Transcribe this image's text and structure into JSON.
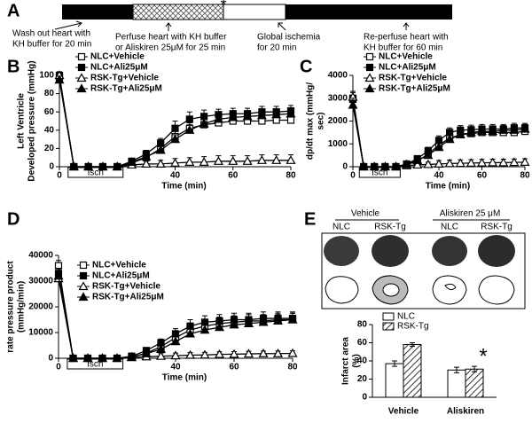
{
  "timeline": {
    "label": "A",
    "star": "*",
    "steps": [
      {
        "lines": [
          "Wash out heart with",
          "KH buffer for 20 min"
        ]
      },
      {
        "lines": [
          "Perfuse heart with KH buffer",
          "or Aliskiren 25μM  for 25 min"
        ]
      },
      {
        "lines": [
          "Global ischemia",
          "for 20 min"
        ]
      },
      {
        "lines": [
          "Re-perfuse heart with",
          "KH buffer for 60 min"
        ]
      }
    ]
  },
  "images": {
    "label": "E",
    "groups": [
      "Vehicle",
      "Aliskiren 25 μM"
    ],
    "columns": [
      "NLC",
      "RSK-Tg",
      "NLC",
      "RSK-Tg"
    ]
  },
  "chart_data": [
    {
      "type": "line",
      "panel": "B",
      "ylabel": [
        "Left Ventricle",
        "Developed pressure (mmHg)"
      ],
      "xlabel": "Time (min)",
      "xlim": [
        0,
        80
      ],
      "xticks": [
        0,
        20,
        40,
        60,
        80
      ],
      "ylim": [
        0,
        100
      ],
      "yticks": [
        0,
        20,
        40,
        60,
        80,
        100
      ],
      "isch": {
        "label": "Isch",
        "start": 3,
        "end": 22
      },
      "x": [
        0,
        5,
        10,
        15,
        20,
        25,
        30,
        35,
        40,
        45,
        50,
        55,
        60,
        65,
        70,
        75,
        80
      ],
      "series": [
        {
          "name": "NLC+Vehicle",
          "color": "#000000",
          "marker": "square-open",
          "values": [
            98,
            0,
            0,
            0,
            0,
            4,
            10,
            20,
            33,
            42,
            46,
            48,
            50,
            50,
            50,
            51,
            51
          ],
          "errors": [
            4,
            0,
            0,
            0,
            0,
            2,
            3,
            4,
            6,
            6,
            6,
            6,
            6,
            6,
            6,
            6,
            6
          ]
        },
        {
          "name": "NLC+Ali25μM",
          "color": "#000000",
          "marker": "square-filled",
          "values": [
            100,
            0,
            0,
            0,
            0,
            6,
            14,
            26,
            42,
            52,
            55,
            57,
            58,
            58,
            60,
            60,
            61
          ],
          "errors": [
            4,
            0,
            0,
            0,
            0,
            2,
            4,
            5,
            8,
            8,
            7,
            6,
            6,
            6,
            6,
            6,
            6
          ]
        },
        {
          "name": "RSK-Tg+Vehicle",
          "color": "#000000",
          "marker": "triangle-open",
          "values": [
            100,
            0,
            0,
            0,
            0,
            2,
            3,
            3,
            4,
            5,
            5,
            6,
            6,
            6,
            7,
            7,
            7
          ],
          "errors": [
            3,
            0,
            0,
            0,
            0,
            2,
            3,
            4,
            5,
            5,
            6,
            6,
            6,
            6,
            6,
            6,
            6
          ]
        },
        {
          "name": "RSK-Tg+Ali25μM",
          "color": "#000000",
          "marker": "triangle-filled",
          "values": [
            95,
            0,
            0,
            0,
            0,
            5,
            11,
            18,
            30,
            40,
            47,
            52,
            54,
            55,
            56,
            57,
            58
          ],
          "errors": [
            4,
            0,
            0,
            0,
            0,
            2,
            3,
            4,
            5,
            6,
            6,
            6,
            6,
            6,
            6,
            6,
            6
          ]
        }
      ]
    },
    {
      "type": "line",
      "panel": "C",
      "ylabel": [
        "dp/dt max  (mmHg/",
        "sec)"
      ],
      "xlabel": "Time (min)",
      "xlim": [
        0,
        80
      ],
      "xticks": [
        0,
        20,
        40,
        60,
        80
      ],
      "ylim": [
        0,
        4000
      ],
      "yticks": [
        0,
        1000,
        2000,
        3000,
        4000
      ],
      "isch": {
        "label": "Isch",
        "start": 3,
        "end": 22
      },
      "x": [
        0,
        5,
        10,
        15,
        20,
        25,
        30,
        35,
        40,
        45,
        50,
        55,
        60,
        65,
        70,
        75,
        80
      ],
      "series": [
        {
          "name": "NLC+Vehicle",
          "color": "#000000",
          "marker": "square-open",
          "values": [
            3000,
            0,
            0,
            0,
            0,
            80,
            250,
            550,
            950,
            1250,
            1400,
            1450,
            1500,
            1500,
            1500,
            1500,
            1550
          ],
          "errors": [
            300,
            0,
            0,
            0,
            0,
            60,
            100,
            150,
            200,
            200,
            200,
            200,
            200,
            200,
            200,
            200,
            200
          ]
        },
        {
          "name": "NLC+Ali25μM",
          "color": "#000000",
          "marker": "square-filled",
          "values": [
            2950,
            0,
            0,
            0,
            0,
            120,
            350,
            700,
            1150,
            1500,
            1600,
            1620,
            1650,
            1650,
            1650,
            1700,
            1700
          ],
          "errors": [
            300,
            0,
            0,
            0,
            0,
            60,
            100,
            150,
            200,
            200,
            200,
            200,
            200,
            200,
            200,
            200,
            200
          ]
        },
        {
          "name": "RSK-Tg+Vehicle",
          "color": "#000000",
          "marker": "triangle-open",
          "values": [
            3050,
            0,
            0,
            0,
            0,
            50,
            80,
            100,
            120,
            140,
            150,
            160,
            170,
            180,
            180,
            190,
            200
          ],
          "errors": [
            250,
            0,
            0,
            0,
            0,
            50,
            100,
            100,
            150,
            150,
            150,
            150,
            150,
            150,
            150,
            150,
            150
          ]
        },
        {
          "name": "RSK-Tg+Ali25μM",
          "color": "#000000",
          "marker": "triangle-filled",
          "values": [
            2700,
            0,
            0,
            0,
            0,
            100,
            280,
            500,
            850,
            1200,
            1400,
            1500,
            1550,
            1550,
            1600,
            1600,
            1650
          ],
          "errors": [
            300,
            0,
            0,
            0,
            0,
            60,
            100,
            150,
            200,
            200,
            200,
            200,
            200,
            200,
            200,
            200,
            200
          ]
        }
      ]
    },
    {
      "type": "line",
      "panel": "D",
      "ylabel": [
        "rate pressure product",
        "(mmHg/min)"
      ],
      "xlabel": "Time (min)",
      "xlim": [
        0,
        80
      ],
      "xticks": [
        0,
        20,
        40,
        60,
        80
      ],
      "ylim": [
        0,
        40000
      ],
      "yticks": [
        0,
        10000,
        20000,
        30000,
        40000
      ],
      "isch": {
        "label": "Isch",
        "start": 3,
        "end": 22
      },
      "x": [
        0,
        5,
        10,
        15,
        20,
        25,
        30,
        35,
        40,
        45,
        50,
        55,
        60,
        65,
        70,
        75,
        80
      ],
      "series": [
        {
          "name": "NLC+Vehicle",
          "color": "#000000",
          "marker": "square-open",
          "values": [
            36000,
            0,
            0,
            0,
            0,
            500,
            2000,
            4500,
            8000,
            11000,
            12500,
            13500,
            14000,
            14500,
            14500,
            15000,
            15000
          ],
          "errors": [
            2000,
            0,
            0,
            0,
            0,
            500,
            1000,
            1500,
            2000,
            2500,
            2500,
            2500,
            2500,
            2500,
            2500,
            2500,
            2500
          ]
        },
        {
          "name": "NLC+Ali25μM",
          "color": "#000000",
          "marker": "square-filled",
          "values": [
            33000,
            0,
            0,
            0,
            0,
            800,
            3000,
            6000,
            9500,
            12500,
            14000,
            14500,
            15000,
            15000,
            15500,
            15500,
            15500
          ],
          "errors": [
            2000,
            0,
            0,
            0,
            0,
            500,
            1000,
            1500,
            2000,
            2500,
            2500,
            2500,
            2500,
            2500,
            2500,
            2500,
            2500
          ]
        },
        {
          "name": "RSK-Tg+Vehicle",
          "color": "#000000",
          "marker": "triangle-open",
          "values": [
            31000,
            0,
            0,
            0,
            0,
            300,
            600,
            800,
            1000,
            1200,
            1300,
            1500,
            1600,
            1700,
            1800,
            1800,
            1900
          ],
          "errors": [
            2000,
            0,
            0,
            0,
            0,
            500,
            800,
            1000,
            1000,
            1000,
            1000,
            1000,
            1000,
            1000,
            1000,
            1000,
            1000
          ]
        },
        {
          "name": "RSK-Tg+Ali25μM",
          "color": "#000000",
          "marker": "triangle-filled",
          "values": [
            32000,
            0,
            0,
            0,
            0,
            500,
            1800,
            3500,
            6500,
            9500,
            11000,
            12000,
            13000,
            13500,
            14000,
            14500,
            15000
          ],
          "errors": [
            2000,
            0,
            0,
            0,
            0,
            500,
            1000,
            1500,
            2000,
            2500,
            2500,
            2500,
            2500,
            2500,
            2500,
            2500,
            2500
          ]
        }
      ]
    },
    {
      "type": "bar",
      "ylabel": [
        "Infarct area",
        "(%)"
      ],
      "annotation": "*",
      "categories": [
        "Vehicle",
        "Aliskiren"
      ],
      "ylim": [
        0,
        80
      ],
      "yticks": [
        0,
        20,
        40,
        60,
        80
      ],
      "series": [
        {
          "name": "NLC",
          "color": "#ffffff",
          "pattern": "none",
          "values": [
            37,
            30
          ],
          "errors": [
            3,
            3
          ]
        },
        {
          "name": "RSK-Tg",
          "color": "#ffffff",
          "pattern": "hatch",
          "values": [
            58,
            31
          ],
          "errors": [
            2,
            3
          ]
        }
      ]
    }
  ]
}
